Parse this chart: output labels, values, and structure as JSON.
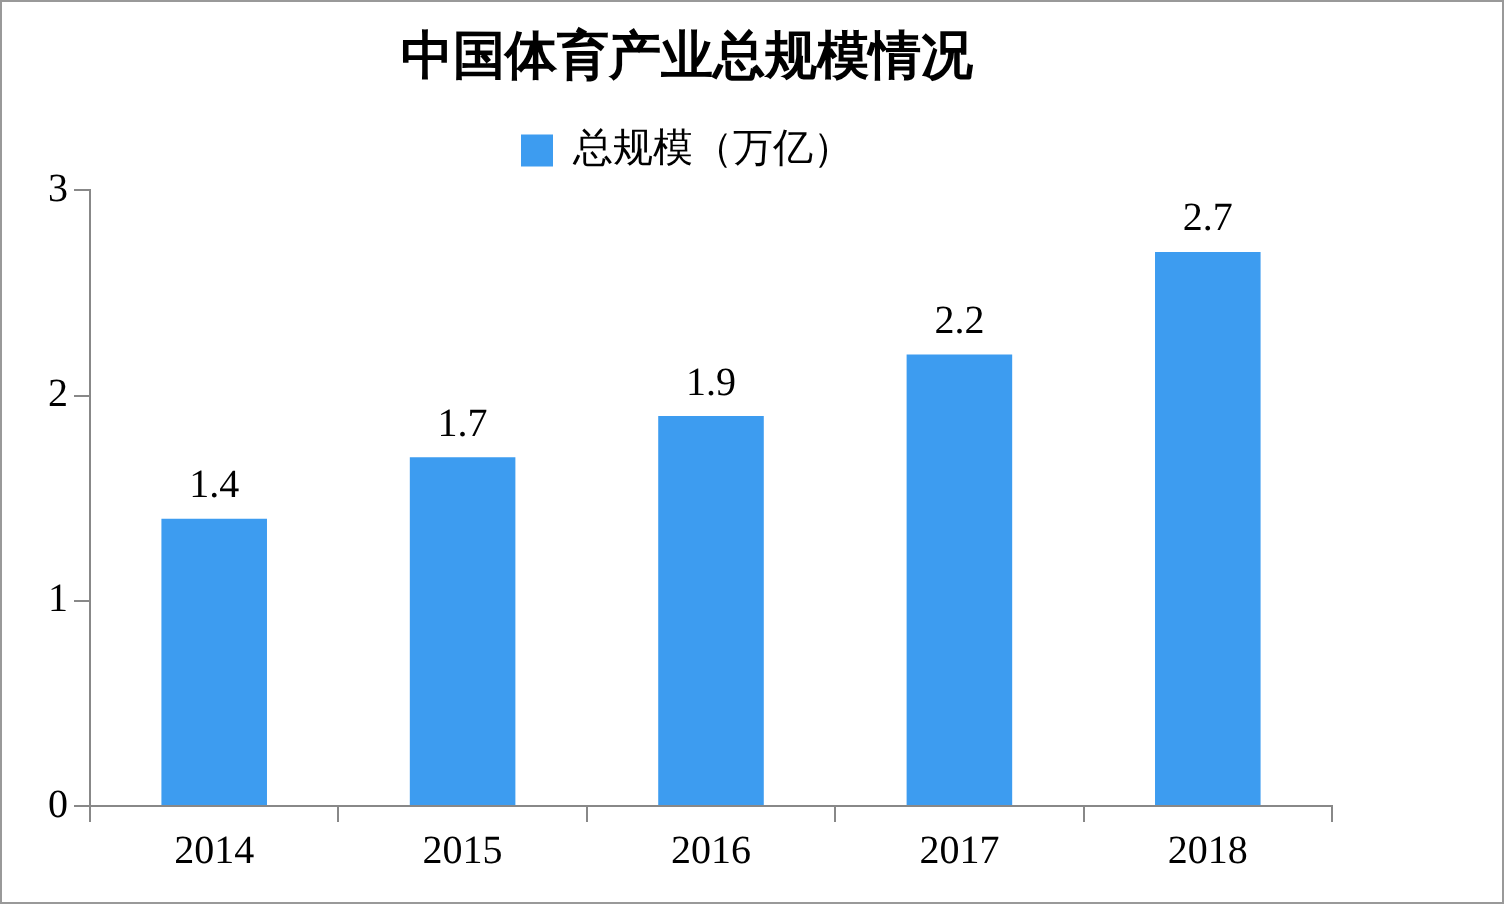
{
  "chart_data": {
    "type": "bar",
    "title": "中国体育产业总规模情况",
    "categories": [
      "2014",
      "2015",
      "2016",
      "2017",
      "2018"
    ],
    "series": [
      {
        "name": "总规模（万亿）",
        "color": "#3d9cf0",
        "values": [
          1.4,
          1.7,
          1.9,
          2.2,
          2.7
        ]
      }
    ],
    "ylim": [
      0,
      3
    ],
    "yticks": [
      0,
      1,
      2,
      3
    ],
    "grid": false,
    "legend": "top",
    "data_labels": true
  }
}
